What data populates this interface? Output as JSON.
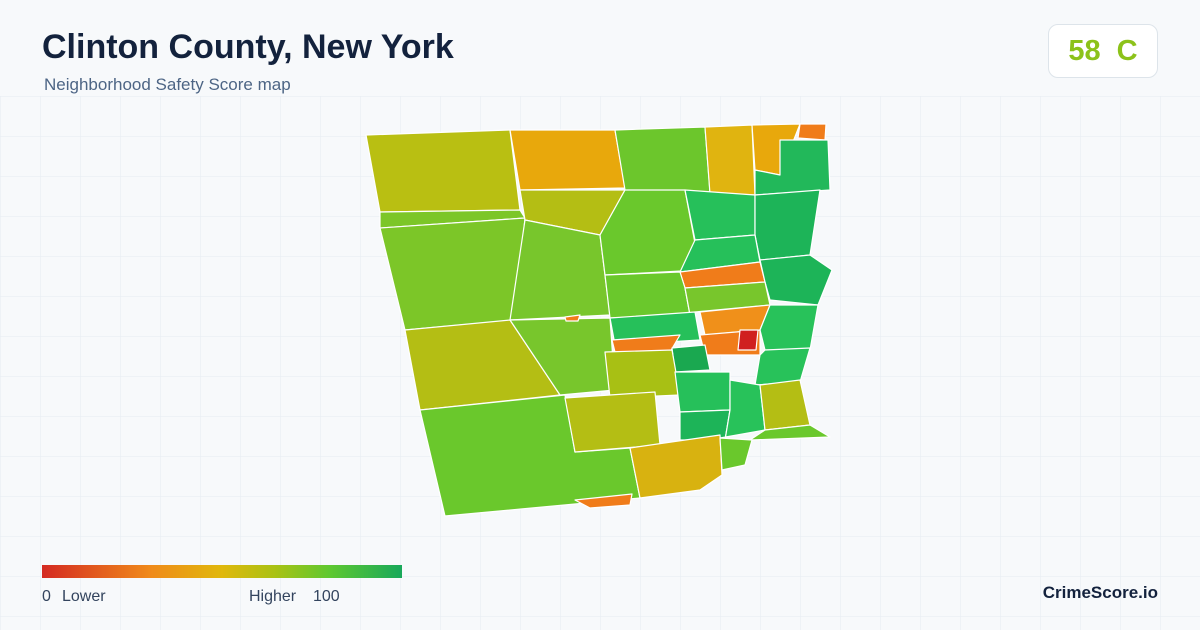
{
  "header": {
    "title": "Clinton County, New York",
    "subtitle": "Neighborhood Safety Score map"
  },
  "score": {
    "value": 58,
    "grade": "C"
  },
  "legend": {
    "min": 0,
    "min_label": "Lower",
    "max_label": "Higher",
    "max": 100
  },
  "brand": "CrimeScore.io"
}
